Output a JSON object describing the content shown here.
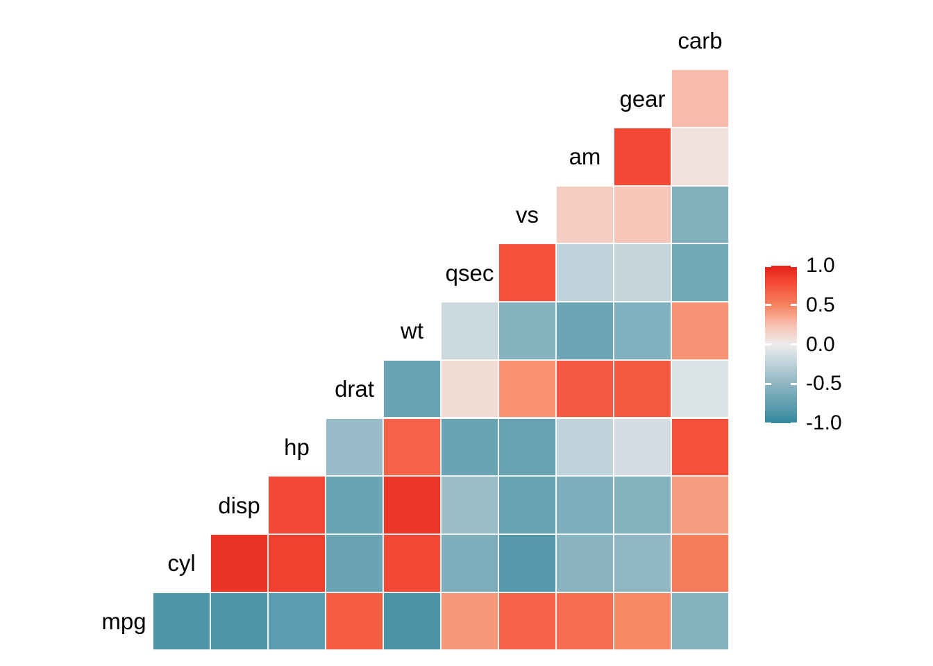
{
  "chart_data": {
    "type": "heatmap",
    "subtype": "correlation-matrix-upper-triangle",
    "title": "",
    "variables": [
      "mpg",
      "cyl",
      "disp",
      "hp",
      "drat",
      "wt",
      "qsec",
      "vs",
      "am",
      "gear",
      "carb"
    ],
    "cells": [
      [
        "mpg",
        "cyl",
        -0.85
      ],
      [
        "mpg",
        "disp",
        -0.85
      ],
      [
        "mpg",
        "hp",
        -0.78
      ],
      [
        "mpg",
        "drat",
        0.68
      ],
      [
        "mpg",
        "wt",
        -0.87
      ],
      [
        "mpg",
        "qsec",
        0.42
      ],
      [
        "mpg",
        "vs",
        0.66
      ],
      [
        "mpg",
        "am",
        0.6
      ],
      [
        "mpg",
        "gear",
        0.48
      ],
      [
        "mpg",
        "carb",
        -0.55
      ],
      [
        "cyl",
        "disp",
        0.9
      ],
      [
        "cyl",
        "hp",
        0.83
      ],
      [
        "cyl",
        "drat",
        -0.7
      ],
      [
        "cyl",
        "wt",
        0.78
      ],
      [
        "cyl",
        "qsec",
        -0.59
      ],
      [
        "cyl",
        "vs",
        -0.81
      ],
      [
        "cyl",
        "am",
        -0.52
      ],
      [
        "cyl",
        "gear",
        -0.49
      ],
      [
        "cyl",
        "carb",
        0.53
      ],
      [
        "disp",
        "hp",
        0.79
      ],
      [
        "disp",
        "drat",
        -0.71
      ],
      [
        "disp",
        "wt",
        0.89
      ],
      [
        "disp",
        "qsec",
        -0.43
      ],
      [
        "disp",
        "vs",
        -0.71
      ],
      [
        "disp",
        "am",
        -0.59
      ],
      [
        "disp",
        "gear",
        -0.56
      ],
      [
        "disp",
        "carb",
        0.39
      ],
      [
        "hp",
        "drat",
        -0.45
      ],
      [
        "hp",
        "wt",
        0.66
      ],
      [
        "hp",
        "qsec",
        -0.71
      ],
      [
        "hp",
        "vs",
        -0.72
      ],
      [
        "hp",
        "am",
        -0.24
      ],
      [
        "hp",
        "gear",
        -0.13
      ],
      [
        "hp",
        "carb",
        0.75
      ],
      [
        "drat",
        "wt",
        -0.71
      ],
      [
        "drat",
        "qsec",
        0.09
      ],
      [
        "drat",
        "vs",
        0.44
      ],
      [
        "drat",
        "am",
        0.71
      ],
      [
        "drat",
        "gear",
        0.7
      ],
      [
        "drat",
        "carb",
        -0.09
      ],
      [
        "wt",
        "qsec",
        -0.17
      ],
      [
        "wt",
        "vs",
        -0.55
      ],
      [
        "wt",
        "am",
        -0.69
      ],
      [
        "wt",
        "gear",
        -0.58
      ],
      [
        "wt",
        "carb",
        0.43
      ],
      [
        "qsec",
        "vs",
        0.74
      ],
      [
        "qsec",
        "am",
        -0.23
      ],
      [
        "qsec",
        "gear",
        -0.21
      ],
      [
        "qsec",
        "carb",
        -0.66
      ],
      [
        "vs",
        "am",
        0.17
      ],
      [
        "vs",
        "gear",
        0.21
      ],
      [
        "vs",
        "carb",
        -0.57
      ],
      [
        "am",
        "gear",
        0.79
      ],
      [
        "am",
        "carb",
        0.06
      ],
      [
        "gear",
        "carb",
        0.27
      ]
    ],
    "color_scale": {
      "domain": [
        -1,
        1
      ],
      "stops": [
        {
          "value": -1.0,
          "color": "#34889E"
        },
        {
          "value": -0.75,
          "color": "#61A0B1"
        },
        {
          "value": -0.5,
          "color": "#8FB6C2"
        },
        {
          "value": -0.25,
          "color": "#BCD2D9"
        },
        {
          "value": 0.0,
          "color": "#EDECEC"
        },
        {
          "value": 0.25,
          "color": "#F8C0AF"
        },
        {
          "value": 0.5,
          "color": "#F7825F"
        },
        {
          "value": 0.75,
          "color": "#F5503A"
        },
        {
          "value": 1.0,
          "color": "#E52118"
        }
      ]
    },
    "legend": {
      "position": "right",
      "ticks": [
        {
          "label": "1.0",
          "value": 1.0
        },
        {
          "label": "0.5",
          "value": 0.5
        },
        {
          "label": "0.0",
          "value": 0.0
        },
        {
          "label": "-0.5",
          "value": -0.5
        },
        {
          "label": "-1.0",
          "value": -1.0
        }
      ]
    },
    "grid_color": "#FFFFFF",
    "text_color": "#000000",
    "background": "#FFFFFF"
  }
}
